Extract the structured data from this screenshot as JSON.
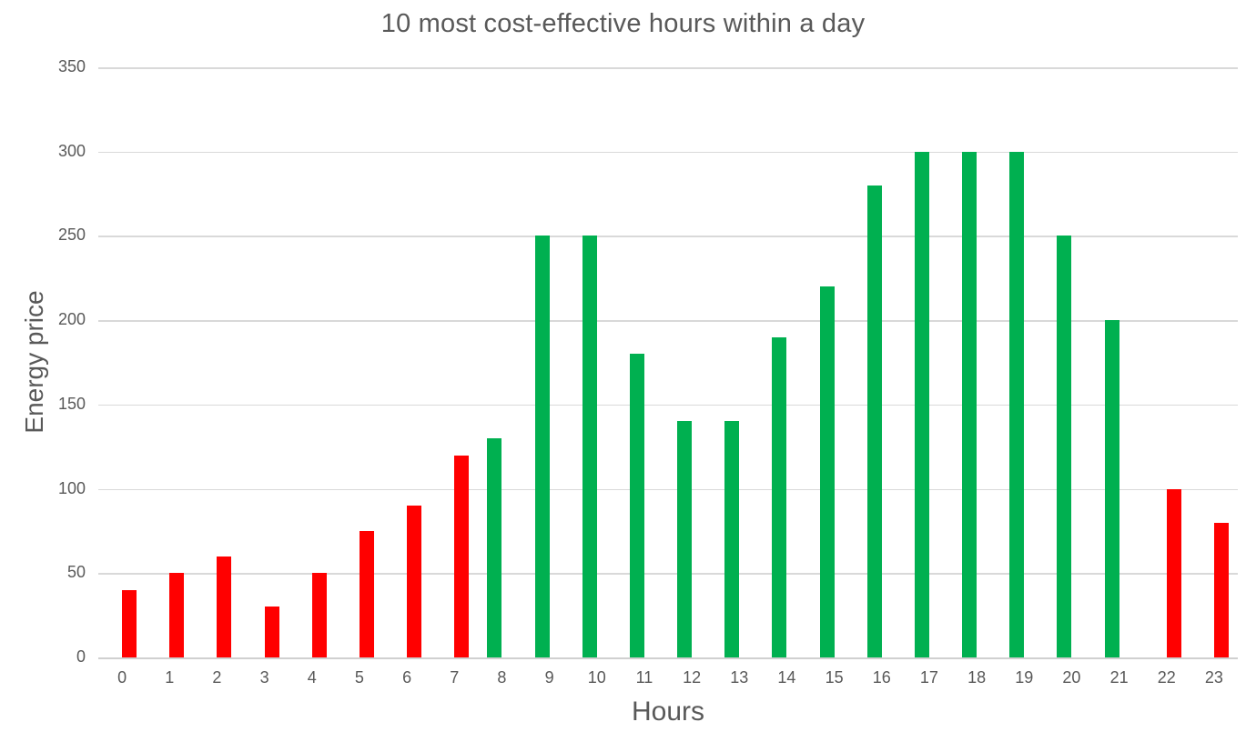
{
  "chart_data": {
    "type": "bar",
    "title": "10 most cost-effective hours within a day",
    "xlabel": "Hours",
    "ylabel": "Energy price",
    "categories": [
      "0",
      "1",
      "2",
      "3",
      "4",
      "5",
      "6",
      "7",
      "8",
      "9",
      "10",
      "11",
      "12",
      "13",
      "14",
      "15",
      "16",
      "17",
      "18",
      "19",
      "20",
      "21",
      "22",
      "23"
    ],
    "values": [
      40,
      50,
      60,
      30,
      50,
      75,
      90,
      120,
      130,
      250,
      250,
      180,
      140,
      140,
      190,
      220,
      280,
      300,
      300,
      300,
      250,
      200,
      100,
      80
    ],
    "cheap_hours": [
      0,
      1,
      2,
      3,
      4,
      5,
      6,
      7,
      22,
      23
    ],
    "series_colors": {
      "cheap": "#ff0000",
      "expensive": "#00b050"
    },
    "ylim": [
      0,
      350
    ],
    "yticks": [
      0,
      50,
      100,
      150,
      200,
      250,
      300,
      350
    ],
    "grid": "horizontal",
    "legend": "none",
    "background_color": "#ffffff",
    "text_color": "#595959",
    "gridline_color": "#d9d9d9"
  }
}
